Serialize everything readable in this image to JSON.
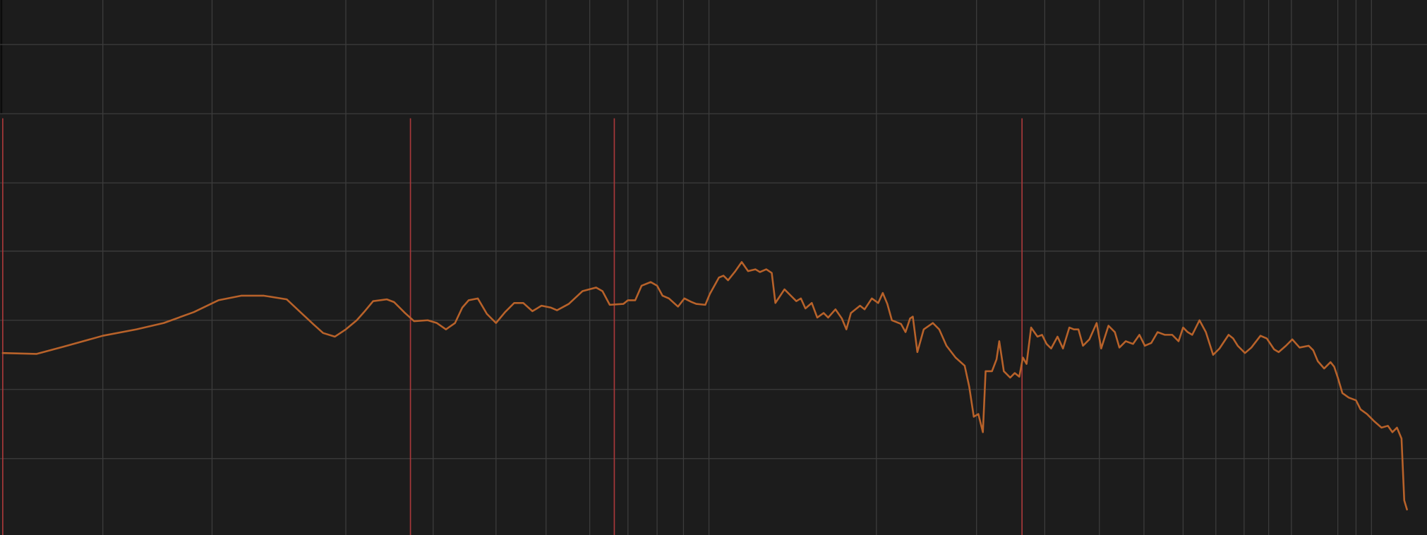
{
  "chart_data": {
    "type": "line",
    "color": "#b8622a",
    "grid": true,
    "grid_color": "#3c3c3c",
    "background": "#1c1c1c",
    "xlim": [
      0,
      1568
    ],
    "ylim": [
      0,
      588
    ],
    "xticks": [
      113,
      233,
      380,
      476,
      545,
      600,
      648,
      690,
      722,
      751,
      779,
      963,
      1073,
      1148,
      1208,
      1257,
      1300,
      1336,
      1367,
      1394,
      1419,
      1470,
      1490,
      1507
    ],
    "yticks": [
      84,
      160,
      236,
      312,
      387,
      463,
      539
    ],
    "markers": [
      3,
      451,
      675,
      1123
    ],
    "marker_top": 458,
    "marker_color": "#a8383a",
    "x": [
      3,
      40,
      70,
      113,
      150,
      180,
      213,
      240,
      265,
      290,
      315,
      330,
      345,
      355,
      368,
      380,
      392,
      400,
      410,
      425,
      433,
      445,
      455,
      470,
      480,
      490,
      500,
      508,
      515,
      525,
      535,
      545,
      555,
      565,
      575,
      585,
      595,
      605,
      612,
      625,
      640,
      655,
      662,
      670,
      685,
      690,
      698,
      705,
      715,
      722,
      728,
      735,
      745,
      752,
      760,
      765,
      775,
      780,
      790,
      795,
      800,
      808,
      815,
      822,
      830,
      835,
      842,
      848,
      852,
      862,
      870,
      875,
      880,
      885,
      892,
      898,
      905,
      910,
      918,
      925,
      930,
      935,
      945,
      950,
      958,
      965,
      970,
      975,
      980,
      990,
      995,
      1000,
      1003,
      1008,
      1015,
      1025,
      1032,
      1040,
      1050,
      1060,
      1065,
      1070,
      1075,
      1080,
      1083,
      1090,
      1095,
      1098,
      1103,
      1110,
      1115,
      1120,
      1124,
      1128,
      1133,
      1140,
      1145,
      1150,
      1155,
      1162,
      1168,
      1175,
      1180,
      1185,
      1190,
      1197,
      1205,
      1210,
      1218,
      1225,
      1230,
      1237,
      1245,
      1252,
      1258,
      1265,
      1272,
      1280,
      1288,
      1295,
      1300,
      1305,
      1310,
      1318,
      1325,
      1333,
      1340,
      1350,
      1355,
      1360,
      1368,
      1375,
      1385,
      1392,
      1400,
      1405,
      1413,
      1420,
      1428,
      1438,
      1443,
      1448,
      1455,
      1462,
      1466,
      1470,
      1475,
      1482,
      1490,
      1495,
      1502,
      1510,
      1518,
      1525,
      1530,
      1535,
      1540,
      1543,
      1546
    ],
    "values": [
      200,
      199,
      207,
      219,
      226,
      233,
      245,
      258,
      263,
      263,
      259,
      245,
      231,
      222,
      218,
      226,
      236,
      245,
      257,
      259,
      256,
      244,
      235,
      236,
      233,
      226,
      233,
      250,
      258,
      260,
      243,
      233,
      245,
      255,
      255,
      246,
      252,
      250,
      247,
      254,
      268,
      272,
      268,
      253,
      254,
      258,
      258,
      274,
      278,
      274,
      263,
      260,
      251,
      260,
      256,
      254,
      253,
      265,
      283,
      285,
      280,
      290,
      300,
      290,
      292,
      289,
      292,
      288,
      255,
      270,
      262,
      257,
      260,
      249,
      255,
      239,
      244,
      239,
      248,
      238,
      226,
      244,
      252,
      248,
      260,
      255,
      266,
      254,
      236,
      232,
      223,
      238,
      240,
      201,
      226,
      233,
      226,
      208,
      195,
      186,
      163,
      130,
      133,
      113,
      180,
      180,
      193,
      213,
      180,
      173,
      178,
      174,
      195,
      188,
      228,
      218,
      220,
      210,
      205,
      218,
      205,
      228,
      226,
      226,
      208,
      215,
      233,
      205,
      230,
      223,
      206,
      213,
      210,
      220,
      208,
      211,
      223,
      220,
      220,
      213,
      228,
      223,
      220,
      236,
      223,
      198,
      205,
      220,
      216,
      208,
      200,
      206,
      219,
      216,
      204,
      201,
      208,
      215,
      206,
      208,
      203,
      191,
      183,
      190,
      185,
      173,
      156,
      151,
      148,
      138,
      133,
      125,
      118,
      120,
      113,
      118,
      106,
      38,
      28
    ]
  }
}
